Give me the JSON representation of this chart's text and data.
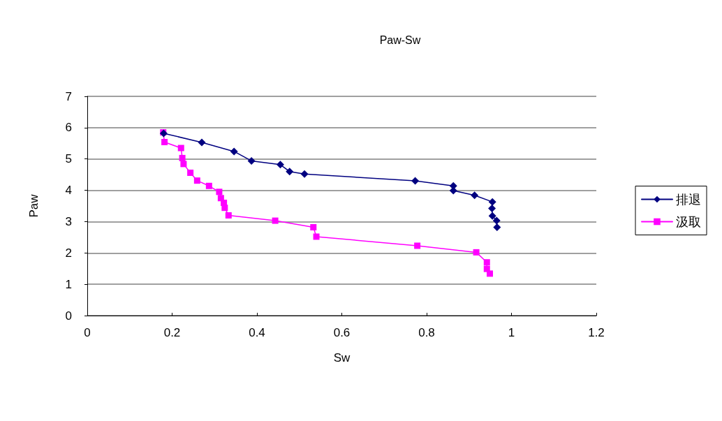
{
  "chart_data": {
    "type": "line",
    "title": "Paw-Sw",
    "xlabel": "Sw",
    "ylabel": "Paw",
    "xlim": [
      0,
      1.2
    ],
    "xticks": [
      0,
      0.2,
      0.4,
      0.6,
      0.8,
      1,
      1.2
    ],
    "ylim": [
      0,
      7
    ],
    "yticks": [
      0,
      1,
      2,
      3,
      4,
      5,
      6,
      7
    ],
    "grid": "y",
    "legend": "right",
    "line_style": "solid",
    "series": [
      {
        "name": "排退",
        "color": "#000080",
        "marker": "diamond",
        "x": [
          0.18,
          0.27,
          0.346,
          0.387,
          0.455,
          0.477,
          0.512,
          0.773,
          0.863,
          0.863,
          0.913,
          0.955,
          0.954,
          0.955,
          0.965,
          0.966
        ],
        "values": [
          5.82,
          5.53,
          5.24,
          4.94,
          4.82,
          4.6,
          4.52,
          4.3,
          4.14,
          3.99,
          3.84,
          3.63,
          3.42,
          3.18,
          3.03,
          2.82
        ]
      },
      {
        "name": "汲取",
        "color": "#ff00ff",
        "marker": "square",
        "x": [
          0.179,
          0.182,
          0.221,
          0.224,
          0.227,
          0.243,
          0.259,
          0.287,
          0.311,
          0.315,
          0.322,
          0.324,
          0.333,
          0.443,
          0.533,
          0.54,
          0.778,
          0.917,
          0.942,
          0.942,
          0.949
        ],
        "values": [
          5.85,
          5.54,
          5.35,
          5.03,
          4.84,
          4.56,
          4.31,
          4.14,
          3.95,
          3.75,
          3.6,
          3.44,
          3.2,
          3.03,
          2.82,
          2.52,
          2.23,
          2.02,
          1.7,
          1.49,
          1.34
        ]
      }
    ]
  }
}
